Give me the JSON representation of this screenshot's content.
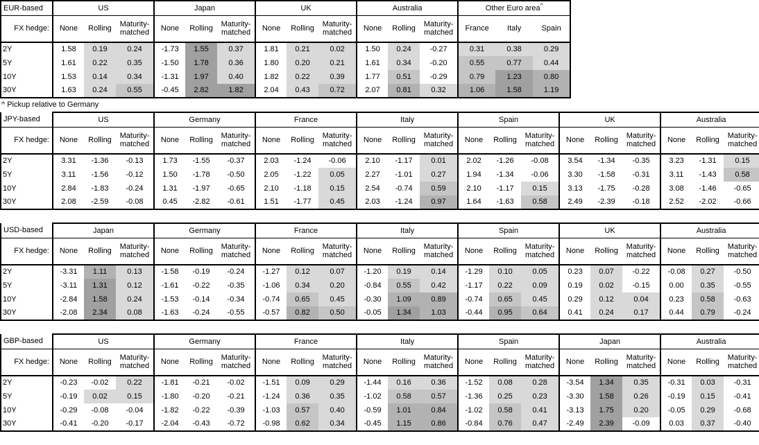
{
  "footnote": "^ Pickup relative to Germany",
  "fx_hedge_label": "FX hedge:",
  "hedge_columns": [
    "None",
    "Rolling",
    "Maturity-matched"
  ],
  "row_labels": [
    "2Y",
    "5Y",
    "10Y",
    "30Y"
  ],
  "heatmap": {
    "negative_color": "#ffffff",
    "positive_bands": [
      [
        0,
        "#d9d9d9"
      ],
      [
        0.5,
        "#c5c5c5"
      ],
      [
        0.8,
        "#b2b2b2"
      ],
      [
        1.2,
        "#a0a0a0"
      ]
    ]
  },
  "tables": [
    {
      "id": "eur",
      "base_label": "EUR-based",
      "groups": [
        {
          "name": "US",
          "type": "hedge",
          "rows": [
            [
              "1.58",
              "0.19",
              "0.24"
            ],
            [
              "1.61",
              "0.22",
              "0.35"
            ],
            [
              "1.53",
              "0.14",
              "0.34"
            ],
            [
              "1.63",
              "0.24",
              "0.55"
            ]
          ]
        },
        {
          "name": "Japan",
          "type": "hedge",
          "rows": [
            [
              "-1.73",
              "1.55",
              "0.37"
            ],
            [
              "-1.50",
              "1.78",
              "0.36"
            ],
            [
              "-1.31",
              "1.97",
              "0.40"
            ],
            [
              "-0.45",
              "2.82",
              "1.82"
            ]
          ]
        },
        {
          "name": "UK",
          "type": "hedge",
          "rows": [
            [
              "1.81",
              "0.21",
              "0.02"
            ],
            [
              "1.80",
              "0.20",
              "0.21"
            ],
            [
              "1.82",
              "0.22",
              "0.39"
            ],
            [
              "2.04",
              "0.43",
              "0.72"
            ]
          ]
        },
        {
          "name": "Australia",
          "type": "hedge",
          "rows": [
            [
              "1.50",
              "0.24",
              "-0.27"
            ],
            [
              "1.61",
              "0.34",
              "-0.20"
            ],
            [
              "1.77",
              "0.51",
              "-0.29"
            ],
            [
              "2.07",
              "0.81",
              "0.32"
            ]
          ]
        },
        {
          "name": "Other Euro area",
          "superscript": "^",
          "type": "pickup",
          "columns": [
            "France",
            "Italy",
            "Spain"
          ],
          "rows": [
            [
              "0.31",
              "0.38",
              "0.29"
            ],
            [
              "0.55",
              "0.77",
              "0.44"
            ],
            [
              "0.79",
              "1.23",
              "0.80"
            ],
            [
              "1.06",
              "1.58",
              "1.19"
            ]
          ]
        }
      ]
    },
    {
      "id": "jpy",
      "base_label": "JPY-based",
      "groups": [
        {
          "name": "US",
          "type": "hedge",
          "rows": [
            [
              "3.31",
              "-1.36",
              "-0.13"
            ],
            [
              "3.11",
              "-1.56",
              "-0.12"
            ],
            [
              "2.84",
              "-1.83",
              "-0.24"
            ],
            [
              "2.08",
              "-2.59",
              "-0.08"
            ]
          ]
        },
        {
          "name": "Germany",
          "type": "hedge",
          "rows": [
            [
              "1.73",
              "-1.55",
              "-0.37"
            ],
            [
              "1.50",
              "-1.78",
              "-0.50"
            ],
            [
              "1.31",
              "-1.97",
              "-0.65"
            ],
            [
              "0.45",
              "-2.82",
              "-0.61"
            ]
          ]
        },
        {
          "name": "France",
          "type": "hedge",
          "rows": [
            [
              "2.03",
              "-1.24",
              "-0.06"
            ],
            [
              "2.05",
              "-1.22",
              "0.05"
            ],
            [
              "2.10",
              "-1.18",
              "0.15"
            ],
            [
              "1.51",
              "-1.77",
              "0.45"
            ]
          ]
        },
        {
          "name": "Italy",
          "type": "hedge",
          "rows": [
            [
              "2.10",
              "-1.17",
              "0.01"
            ],
            [
              "2.27",
              "-1.01",
              "0.27"
            ],
            [
              "2.54",
              "-0.74",
              "0.59"
            ],
            [
              "2.03",
              "-1.24",
              "0.97"
            ]
          ]
        },
        {
          "name": "Spain",
          "type": "hedge",
          "rows": [
            [
              "2.02",
              "-1.26",
              "-0.08"
            ],
            [
              "1.94",
              "-1.34",
              "-0.06"
            ],
            [
              "2.10",
              "-1.17",
              "0.15"
            ],
            [
              "1.64",
              "-1.63",
              "0.58"
            ]
          ]
        },
        {
          "name": "UK",
          "type": "hedge",
          "rows": [
            [
              "3.54",
              "-1.34",
              "-0.35"
            ],
            [
              "3.30",
              "-1.58",
              "-0.31"
            ],
            [
              "3.13",
              "-1.75",
              "-0.28"
            ],
            [
              "2.49",
              "-2.39",
              "-0.18"
            ]
          ]
        },
        {
          "name": "Australia",
          "type": "hedge",
          "rows": [
            [
              "3.23",
              "-1.31",
              "0.15"
            ],
            [
              "3.11",
              "-1.43",
              "0.58"
            ],
            [
              "3.08",
              "-1.46",
              "-0.65"
            ],
            [
              "2.52",
              "-2.02",
              "-0.66"
            ]
          ]
        }
      ]
    },
    {
      "id": "usd",
      "base_label": "USD-based",
      "groups": [
        {
          "name": "Japan",
          "type": "hedge",
          "rows": [
            [
              "-3.31",
              "1.11",
              "0.13"
            ],
            [
              "-3.11",
              "1.31",
              "0.12"
            ],
            [
              "-2.84",
              "1.58",
              "0.24"
            ],
            [
              "-2.08",
              "2.34",
              "0.08"
            ]
          ]
        },
        {
          "name": "Germany",
          "type": "hedge",
          "rows": [
            [
              "-1.58",
              "-0.19",
              "-0.24"
            ],
            [
              "-1.61",
              "-0.22",
              "-0.35"
            ],
            [
              "-1.53",
              "-0.14",
              "-0.34"
            ],
            [
              "-1.63",
              "-0.24",
              "-0.55"
            ]
          ]
        },
        {
          "name": "France",
          "type": "hedge",
          "rows": [
            [
              "-1.27",
              "0.12",
              "0.07"
            ],
            [
              "-1.06",
              "0.34",
              "0.20"
            ],
            [
              "-0.74",
              "0.65",
              "0.45"
            ],
            [
              "-0.57",
              "0.82",
              "0.50"
            ]
          ]
        },
        {
          "name": "Italy",
          "type": "hedge",
          "rows": [
            [
              "-1.20",
              "0.19",
              "0.14"
            ],
            [
              "-0.84",
              "0.55",
              "0.42"
            ],
            [
              "-0.30",
              "1.09",
              "0.89"
            ],
            [
              "-0.05",
              "1.34",
              "1.03"
            ]
          ]
        },
        {
          "name": "Spain",
          "type": "hedge",
          "rows": [
            [
              "-1.29",
              "0.10",
              "0.05"
            ],
            [
              "-1.17",
              "0.22",
              "0.09"
            ],
            [
              "-0.74",
              "0.65",
              "0.45"
            ],
            [
              "-0.44",
              "0.95",
              "0.64"
            ]
          ]
        },
        {
          "name": "UK",
          "type": "hedge",
          "rows": [
            [
              "0.23",
              "0.07",
              "-0.22"
            ],
            [
              "0.19",
              "0.02",
              "-0.15"
            ],
            [
              "0.29",
              "0.12",
              "0.04"
            ],
            [
              "0.41",
              "0.24",
              "0.17"
            ]
          ]
        },
        {
          "name": "Australia",
          "type": "hedge",
          "rows": [
            [
              "-0.08",
              "0.27",
              "-0.50"
            ],
            [
              "0.00",
              "0.35",
              "-0.55"
            ],
            [
              "0.23",
              "0.58",
              "-0.63"
            ],
            [
              "0.44",
              "0.79",
              "-0.24"
            ]
          ]
        }
      ]
    },
    {
      "id": "gbp",
      "base_label": "GBP-based",
      "groups": [
        {
          "name": "US",
          "type": "hedge",
          "rows": [
            [
              "-0.23",
              "-0.02",
              "0.22"
            ],
            [
              "-0.19",
              "0.02",
              "0.15"
            ],
            [
              "-0.29",
              "-0.08",
              "-0.04"
            ],
            [
              "-0.41",
              "-0.20",
              "-0.17"
            ]
          ]
        },
        {
          "name": "Germany",
          "type": "hedge",
          "rows": [
            [
              "-1.81",
              "-0.21",
              "-0.02"
            ],
            [
              "-1.80",
              "-0.20",
              "-0.21"
            ],
            [
              "-1.82",
              "-0.22",
              "-0.39"
            ],
            [
              "-2.04",
              "-0.43",
              "-0.72"
            ]
          ]
        },
        {
          "name": "France",
          "type": "hedge",
          "rows": [
            [
              "-1.51",
              "0.09",
              "0.29"
            ],
            [
              "-1.24",
              "0.36",
              "0.35"
            ],
            [
              "-1.03",
              "0.57",
              "0.40"
            ],
            [
              "-0.98",
              "0.62",
              "0.34"
            ]
          ]
        },
        {
          "name": "Italy",
          "type": "hedge",
          "rows": [
            [
              "-1.44",
              "0.16",
              "0.36"
            ],
            [
              "-1.02",
              "0.58",
              "0.57"
            ],
            [
              "-0.59",
              "1.01",
              "0.84"
            ],
            [
              "-0.45",
              "1.15",
              "0.86"
            ]
          ]
        },
        {
          "name": "Spain",
          "type": "hedge",
          "rows": [
            [
              "-1.52",
              "0.08",
              "0.28"
            ],
            [
              "-1.36",
              "0.25",
              "0.23"
            ],
            [
              "-1.02",
              "0.58",
              "0.41"
            ],
            [
              "-0.84",
              "0.76",
              "0.47"
            ]
          ]
        },
        {
          "name": "Japan",
          "type": "hedge",
          "rows": [
            [
              "-3.54",
              "1.34",
              "0.35"
            ],
            [
              "-3.30",
              "1.58",
              "0.26"
            ],
            [
              "-3.13",
              "1.75",
              "0.20"
            ],
            [
              "-2.49",
              "2.39",
              "-0.09"
            ]
          ]
        },
        {
          "name": "Australia",
          "type": "hedge",
          "rows": [
            [
              "-0.31",
              "0.03",
              "-0.31"
            ],
            [
              "-0.19",
              "0.15",
              "-0.41"
            ],
            [
              "-0.05",
              "0.29",
              "-0.68"
            ],
            [
              "0.03",
              "0.37",
              "-0.40"
            ]
          ]
        }
      ]
    }
  ]
}
